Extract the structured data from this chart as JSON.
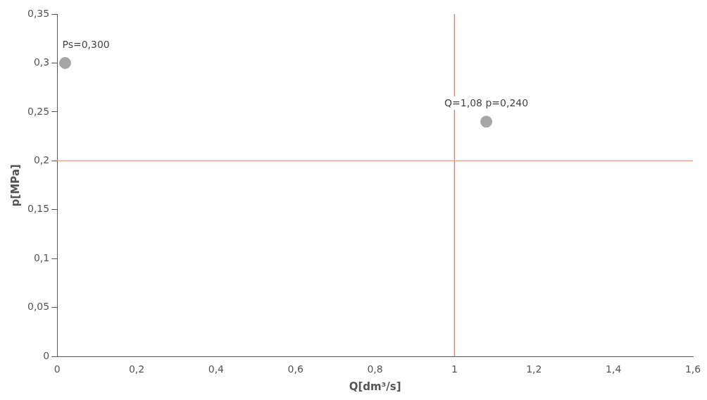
{
  "chart_data": {
    "type": "scatter",
    "xlabel": "Q[dm³/s]",
    "ylabel": "p[MPa]",
    "x": [
      0.02,
      1.08
    ],
    "values": [
      0.3,
      0.24
    ],
    "color": "#a6a6a6",
    "marker": "circle",
    "xlim": [
      0,
      1.6
    ],
    "ylim": [
      0,
      0.35
    ],
    "xticks": [
      0,
      {
        "value": 0.2,
        "label": "0,2"
      },
      {
        "value": 0.4,
        "label": "0,4"
      },
      {
        "value": 0.6,
        "label": "0,6"
      },
      {
        "value": 0.8,
        "label": "0,8"
      },
      1,
      {
        "value": 1.2,
        "label": "1,2"
      },
      {
        "value": 1.4,
        "label": "1,4"
      },
      {
        "value": 1.6,
        "label": "1,6"
      }
    ],
    "yticks": [
      0,
      {
        "value": 0.05,
        "label": "0,05"
      },
      {
        "value": 0.1,
        "label": "0,1"
      },
      {
        "value": 0.15,
        "label": "0,15"
      },
      {
        "value": 0.2,
        "label": "0,2"
      },
      {
        "value": 0.25,
        "label": "0,25"
      },
      {
        "value": 0.3,
        "label": "0,3"
      },
      {
        "value": 0.35,
        "label": "0,35"
      }
    ],
    "ref_lines": [
      {
        "axis": "x",
        "value": 1,
        "color": "#d9836e"
      },
      {
        "axis": "y",
        "value": 0.2,
        "color": "#f0a898"
      }
    ],
    "annotations": [
      {
        "text": "Ps=0,300",
        "x": 0.02,
        "y": 0.3
      },
      {
        "text": "Q=1,08 p=0,240",
        "x": 1.08,
        "y": 0.24
      }
    ],
    "grid": false,
    "legend": false
  }
}
